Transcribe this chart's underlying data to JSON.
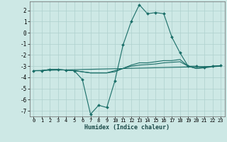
{
  "xlabel": "Humidex (Indice chaleur)",
  "bg_color": "#cde8e5",
  "grid_color": "#aed0cd",
  "line_color": "#1a6e68",
  "xlim": [
    -0.5,
    23.5
  ],
  "ylim": [
    -7.5,
    2.8
  ],
  "xticks": [
    0,
    1,
    2,
    3,
    4,
    5,
    6,
    7,
    8,
    9,
    10,
    11,
    12,
    13,
    14,
    15,
    16,
    17,
    18,
    19,
    20,
    21,
    22,
    23
  ],
  "yticks": [
    -7,
    -6,
    -5,
    -4,
    -3,
    -2,
    -1,
    0,
    1,
    2
  ],
  "line1_x": [
    0,
    1,
    2,
    3,
    4,
    5,
    6,
    7,
    8,
    9,
    10,
    11,
    12,
    13,
    14,
    15,
    16,
    17,
    18,
    19,
    20,
    21,
    22,
    23
  ],
  "line1_y": [
    -3.4,
    -3.4,
    -3.3,
    -3.3,
    -3.35,
    -3.4,
    -4.2,
    -7.3,
    -6.5,
    -6.7,
    -4.3,
    -1.1,
    1.0,
    2.5,
    1.7,
    1.8,
    1.7,
    -0.4,
    -1.8,
    -3.0,
    -3.0,
    -3.1,
    -3.0,
    -2.95
  ],
  "line2_x": [
    0,
    1,
    2,
    3,
    4,
    5,
    6,
    7,
    8,
    9,
    10,
    11,
    12,
    13,
    14,
    15,
    16,
    17,
    18,
    19,
    20,
    21,
    22,
    23
  ],
  "line2_y": [
    -3.4,
    -3.4,
    -3.3,
    -3.3,
    -3.35,
    -3.4,
    -3.5,
    -3.6,
    -3.6,
    -3.6,
    -3.4,
    -3.2,
    -2.9,
    -2.7,
    -2.7,
    -2.6,
    -2.5,
    -2.5,
    -2.4,
    -3.0,
    -3.2,
    -3.1,
    -3.0,
    -2.95
  ],
  "line3_x": [
    0,
    1,
    2,
    3,
    4,
    5,
    6,
    7,
    8,
    9,
    10,
    11,
    12,
    13,
    14,
    15,
    16,
    17,
    18,
    19,
    20,
    21,
    22,
    23
  ],
  "line3_y": [
    -3.4,
    -3.4,
    -3.3,
    -3.3,
    -3.35,
    -3.4,
    -3.5,
    -3.6,
    -3.6,
    -3.6,
    -3.5,
    -3.2,
    -3.0,
    -2.9,
    -2.85,
    -2.8,
    -2.7,
    -2.65,
    -2.6,
    -3.0,
    -3.2,
    -3.15,
    -3.05,
    -3.0
  ],
  "line4_x": [
    0,
    23
  ],
  "line4_y": [
    -3.4,
    -3.0
  ]
}
